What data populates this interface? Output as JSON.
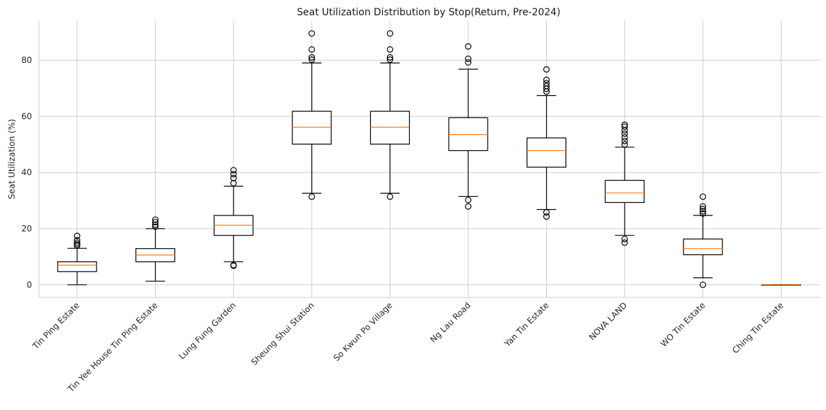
{
  "chart_data": {
    "type": "box",
    "title": "Seat Utilization Distribution by Stop(Return, Pre-2024)",
    "xlabel": "",
    "ylabel": "Seat Utilization (%)",
    "ylim": [
      -4.5,
      94
    ],
    "yticks": [
      0,
      20,
      40,
      60,
      80
    ],
    "grid": true,
    "colors": {
      "box": "#000000",
      "median": "#ff7f0e",
      "grid": "#cccccc"
    },
    "categories": [
      "Tin Ping Estate",
      "Tin Yee House Tin Ping Estate",
      "Lung Fung Garden",
      "Sheung Shui Station",
      "So Kwun Po Village",
      "Ng Lau Road",
      "Yan Tin Estate",
      "NOVA LAND",
      "WO Tin Estate",
      "Ching Tin Estate"
    ],
    "boxes": [
      {
        "whisker_low": 0,
        "q1": 4.7,
        "median": 7.0,
        "q3": 8.2,
        "whisker_high": 13.0,
        "fliers": [
          13.9,
          14.4,
          15.0,
          15.9,
          17.4
        ]
      },
      {
        "whisker_low": 1.3,
        "q1": 8.2,
        "median": 10.6,
        "q3": 12.9,
        "whisker_high": 20.0,
        "fliers": [
          20.7,
          21.4,
          22.3,
          23.2
        ]
      },
      {
        "whisker_low": 8.2,
        "q1": 17.6,
        "median": 21.2,
        "q3": 24.7,
        "whisker_high": 35.1,
        "fliers": [
          6.8,
          7.0,
          36.2,
          38.0,
          39.4,
          40.8
        ]
      },
      {
        "whisker_low": 32.6,
        "q1": 50.1,
        "median": 56.1,
        "q3": 61.8,
        "whisker_high": 79.0,
        "fliers": [
          31.4,
          80.2,
          81.0,
          83.8,
          89.5
        ]
      },
      {
        "whisker_low": 32.6,
        "q1": 50.1,
        "median": 56.1,
        "q3": 61.8,
        "whisker_high": 79.0,
        "fliers": [
          31.4,
          80.2,
          81.0,
          83.8,
          89.5
        ]
      },
      {
        "whisker_low": 31.5,
        "q1": 47.8,
        "median": 53.5,
        "q3": 59.5,
        "whisker_high": 76.8,
        "fliers": [
          27.9,
          30.2,
          79.2,
          80.5,
          84.9
        ]
      },
      {
        "whisker_low": 26.8,
        "q1": 41.9,
        "median": 47.8,
        "q3": 52.3,
        "whisker_high": 67.4,
        "fliers": [
          24.3,
          25.8,
          68.8,
          69.8,
          70.8,
          71.8,
          73.0,
          76.7
        ]
      },
      {
        "whisker_low": 17.6,
        "q1": 29.3,
        "median": 32.7,
        "q3": 37.2,
        "whisker_high": 49.0,
        "fliers": [
          15.0,
          16.3,
          50.0,
          51.2,
          52.5,
          53.8,
          55.0,
          56.3,
          57.0
        ]
      },
      {
        "whisker_low": 2.5,
        "q1": 10.7,
        "median": 12.9,
        "q3": 16.3,
        "whisker_high": 24.7,
        "fliers": [
          0,
          25.4,
          26.2,
          27.0,
          27.9,
          31.4
        ]
      },
      {
        "whisker_low": 0,
        "q1": 0,
        "median": 0,
        "q3": 0,
        "whisker_high": 0,
        "fliers": []
      }
    ]
  }
}
